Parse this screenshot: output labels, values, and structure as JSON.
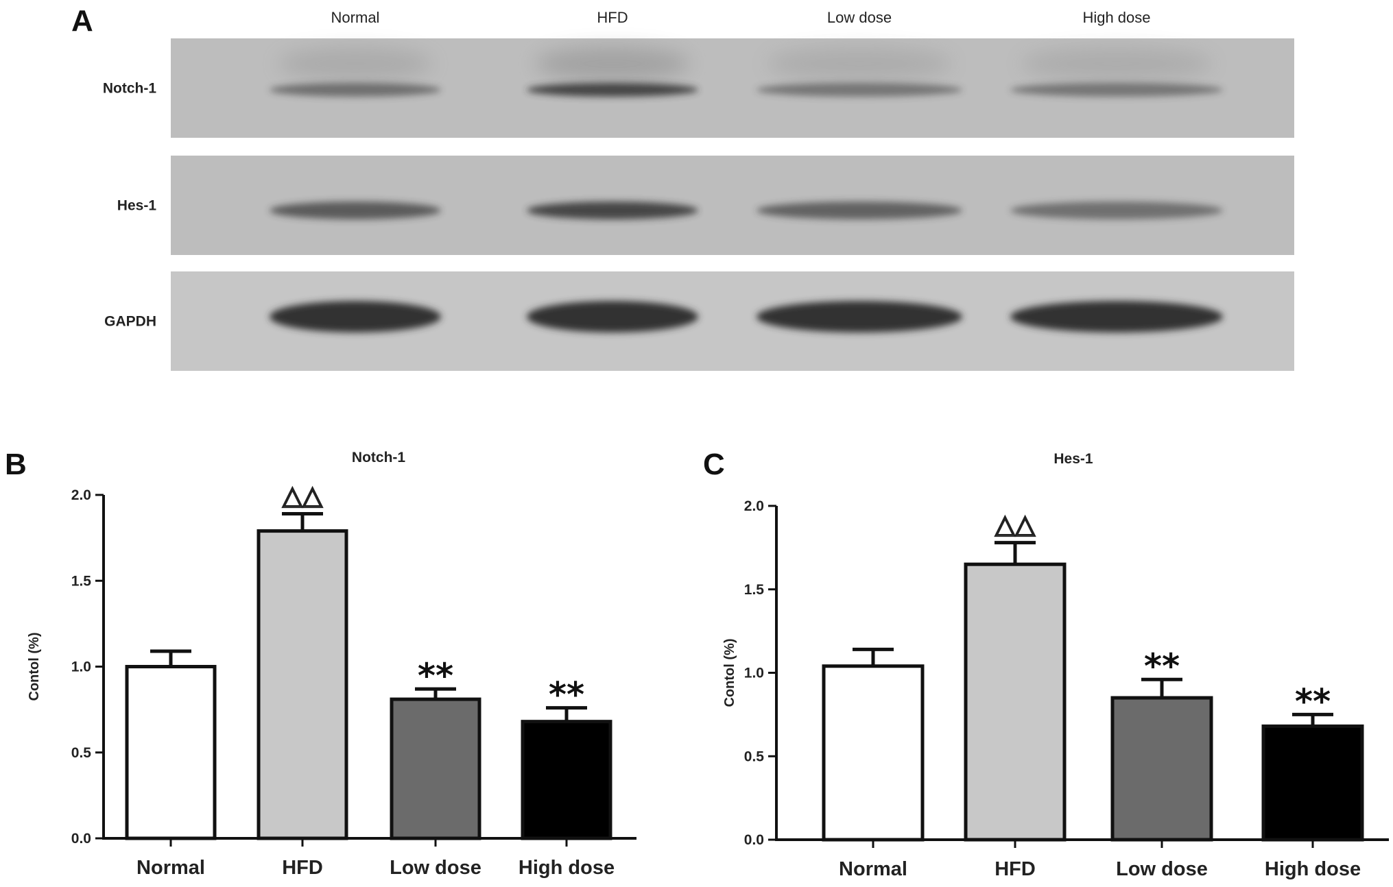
{
  "panel_a": {
    "letter": "A",
    "lanes": [
      "Normal",
      "HFD",
      "Low dose",
      "High dose"
    ],
    "blots": [
      {
        "label": "Notch-1",
        "intensity": [
          0.55,
          0.85,
          0.5,
          0.5
        ],
        "smear": true
      },
      {
        "label": "Hes-1",
        "intensity": [
          0.7,
          0.85,
          0.65,
          0.55
        ],
        "smear": false
      },
      {
        "label": "GAPDH",
        "intensity": [
          1.0,
          1.0,
          1.0,
          1.0
        ],
        "smear": false
      }
    ]
  },
  "chart_data": [
    {
      "type": "bar",
      "panel_letter": "B",
      "title": "Notch-1",
      "ylabel": "Contol (%)",
      "xlabel": "",
      "categories": [
        "Normal",
        "HFD",
        "Low dose",
        "High dose"
      ],
      "values": [
        1.0,
        1.79,
        0.81,
        0.68
      ],
      "errors": [
        0.09,
        0.1,
        0.06,
        0.08
      ],
      "annotations": [
        "",
        "△△",
        "**",
        "**"
      ],
      "colors": [
        "#ffffff",
        "#c8c8c8",
        "#6b6b6b",
        "#000000"
      ],
      "ylim": [
        0,
        2.0
      ],
      "yticks": [
        "0.0",
        "0.5",
        "1.0",
        "1.5",
        "2.0"
      ]
    },
    {
      "type": "bar",
      "panel_letter": "C",
      "title": "Hes-1",
      "ylabel": "Contol (%)",
      "xlabel": "",
      "categories": [
        "Normal",
        "HFD",
        "Low dose",
        "High dose"
      ],
      "values": [
        1.04,
        1.65,
        0.85,
        0.68
      ],
      "errors": [
        0.1,
        0.13,
        0.11,
        0.07
      ],
      "annotations": [
        "",
        "△△",
        "**",
        "**"
      ],
      "colors": [
        "#ffffff",
        "#c8c8c8",
        "#6b6b6b",
        "#000000"
      ],
      "ylim": [
        0,
        2.0
      ],
      "yticks": [
        "0.0",
        "0.5",
        "1.0",
        "1.5",
        "2.0"
      ]
    }
  ]
}
